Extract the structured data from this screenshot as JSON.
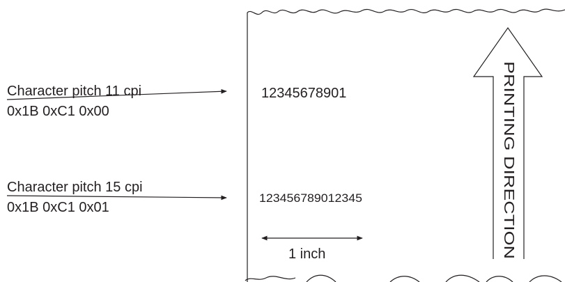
{
  "annotations": [
    {
      "label": "Character pitch 11 cpi",
      "command": "0x1B 0xC1 0x00",
      "sample": "12345678901"
    },
    {
      "label": "Character pitch 15 cpi",
      "command": "0x1B 0xC1 0x01",
      "sample": "123456789012345"
    }
  ],
  "scale_label": "1 inch",
  "direction_label": "PRINTING DIRECTION"
}
